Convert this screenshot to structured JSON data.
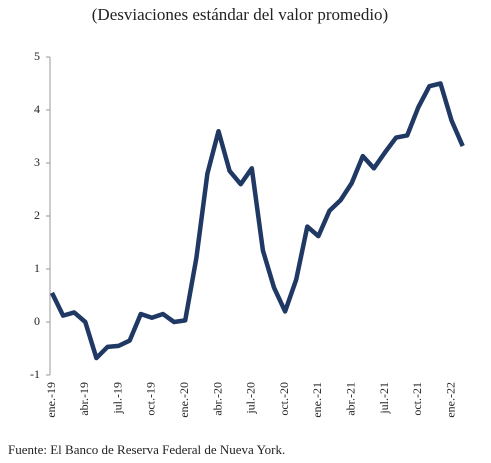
{
  "chart_data": {
    "type": "line",
    "subtitle": "(Desviaciones estándar del valor promedio)",
    "source": "Fuente: El Banco de Reserva Federal de Nueva York.",
    "categories": [
      "ene.-19",
      null,
      null,
      "abr.-19",
      null,
      null,
      "jul.-19",
      null,
      null,
      "oct.-19",
      null,
      null,
      "ene.-20",
      null,
      null,
      "abr.-20",
      null,
      null,
      "jul.-20",
      null,
      null,
      "oct.-20",
      null,
      null,
      "ene.-21",
      null,
      null,
      "abr.-21",
      null,
      null,
      "jul.-21",
      null,
      null,
      "oct.-21",
      null,
      null,
      "ene.-22",
      null
    ],
    "series": [
      {
        "color": "#1f3864",
        "values": [
          0.55,
          0.12,
          0.18,
          0.0,
          -0.68,
          -0.47,
          -0.45,
          -0.35,
          0.15,
          0.08,
          0.15,
          0.0,
          0.03,
          1.2,
          2.8,
          3.6,
          2.85,
          2.6,
          2.9,
          1.35,
          0.65,
          0.2,
          0.8,
          1.8,
          1.62,
          2.1,
          2.3,
          2.62,
          3.13,
          2.9,
          3.2,
          3.48,
          3.52,
          4.05,
          4.45,
          4.5,
          3.8,
          3.32
        ]
      }
    ],
    "ylim": [
      -1,
      5
    ],
    "yticks": [
      -1,
      0,
      1,
      2,
      3,
      4,
      5
    ]
  }
}
